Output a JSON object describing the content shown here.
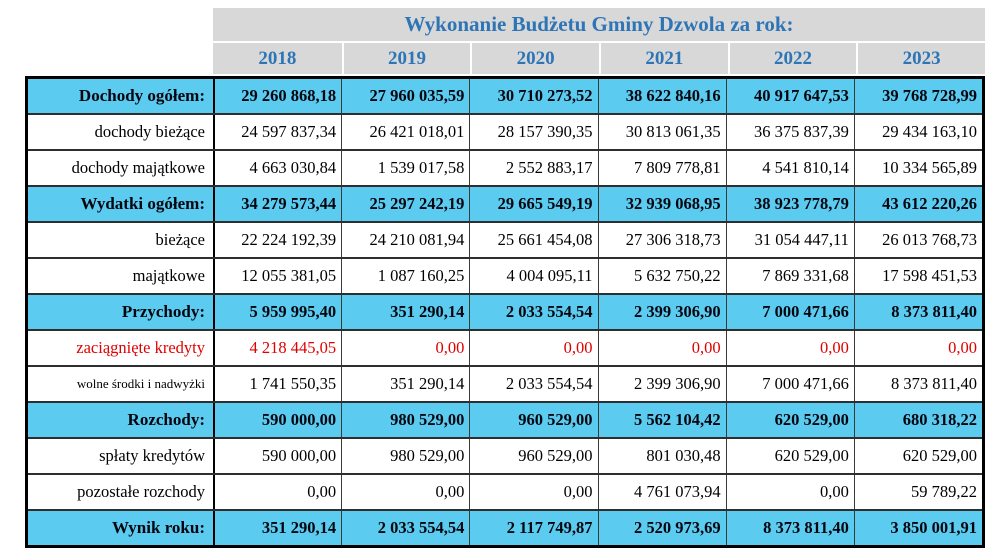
{
  "colors": {
    "accent_blue": "#2E75B6",
    "header_gray": "#D8D8D8",
    "row_cyan": "#5BCBEF",
    "negative_red": "#E00000",
    "border_black": "#000000"
  },
  "table": {
    "title": "Wykonanie Budżetu Gminy Dzwola za rok:",
    "years": [
      "2018",
      "2019",
      "2020",
      "2021",
      "2022",
      "2023"
    ],
    "rows": [
      {
        "label": "Dochody ogółem:",
        "style": "total",
        "values": [
          "29 260 868,18",
          "27 960 035,59",
          "30 710 273,52",
          "38 622 840,16",
          "40 917 647,53",
          "39 768 728,99"
        ]
      },
      {
        "label": "dochody bieżące",
        "style": "plain",
        "values": [
          "24 597 837,34",
          "26 421 018,01",
          "28 157 390,35",
          "30 813 061,35",
          "36 375 837,39",
          "29 434 163,10"
        ]
      },
      {
        "label": "dochody majątkowe",
        "style": "plain",
        "values": [
          "4 663 030,84",
          "1 539 017,58",
          "2 552 883,17",
          "7 809 778,81",
          "4 541 810,14",
          "10 334 565,89"
        ]
      },
      {
        "label": "Wydatki ogółem:",
        "style": "total",
        "values": [
          "34 279 573,44",
          "25 297 242,19",
          "29 665 549,19",
          "32 939 068,95",
          "38 923 778,79",
          "43 612 220,26"
        ]
      },
      {
        "label": "bieżące",
        "style": "plain",
        "values": [
          "22 224 192,39",
          "24 210 081,94",
          "25 661 454,08",
          "27 306 318,73",
          "31 054 447,11",
          "26 013 768,73"
        ]
      },
      {
        "label": "majątkowe",
        "style": "plain",
        "values": [
          "12 055 381,05",
          "1 087 160,25",
          "4 004 095,11",
          "5 632 750,22",
          "7 869 331,68",
          "17 598 451,53"
        ]
      },
      {
        "label": "Przychody:",
        "style": "total",
        "values": [
          "5 959 995,40",
          "351 290,14",
          "2 033 554,54",
          "2 399 306,90",
          "7 000 471,66",
          "8 373 811,40"
        ]
      },
      {
        "label": "zaciągnięte kredyty",
        "style": "credit",
        "values": [
          "4 218 445,05",
          "0,00",
          "0,00",
          "0,00",
          "0,00",
          "0,00"
        ]
      },
      {
        "label": "wolne środki i nadwyżki",
        "style": "small",
        "values": [
          "1 741 550,35",
          "351 290,14",
          "2 033 554,54",
          "2 399 306,90",
          "7 000 471,66",
          "8 373 811,40"
        ]
      },
      {
        "label": "Rozchody:",
        "style": "total",
        "values": [
          "590 000,00",
          "980 529,00",
          "960 529,00",
          "5 562 104,42",
          "620 529,00",
          "680 318,22"
        ]
      },
      {
        "label": "spłaty kredytów",
        "style": "plain",
        "values": [
          "590 000,00",
          "980 529,00",
          "960 529,00",
          "801 030,48",
          "620 529,00",
          "620 529,00"
        ]
      },
      {
        "label": "pozostałe rozchody",
        "style": "plain",
        "values": [
          "0,00",
          "0,00",
          "0,00",
          "4 761 073,94",
          "0,00",
          "59 789,22"
        ]
      },
      {
        "label": "Wynik roku:",
        "style": "total",
        "values": [
          "351 290,14",
          "2 033 554,54",
          "2 117 749,87",
          "2 520 973,69",
          "8 373 811,40",
          "3 850 001,91"
        ]
      }
    ]
  }
}
